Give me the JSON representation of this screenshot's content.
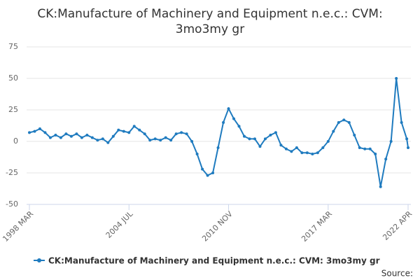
{
  "chart_data": {
    "type": "line",
    "title": "CK:Manufacture of Machinery and Equipment n.e.c.: CVM: 3mo3my gr",
    "source": "Source:",
    "x": [
      "1998 MAR",
      "1998 JUL",
      "1998 NOV",
      "1999 MAR",
      "1999 JUL",
      "1999 NOV",
      "2000 MAR",
      "2000 JUL",
      "2000 NOV",
      "2001 MAR",
      "2001 JUL",
      "2001 NOV",
      "2002 MAR",
      "2002 JUL",
      "2002 NOV",
      "2003 MAR",
      "2003 JUL",
      "2003 NOV",
      "2004 MAR",
      "2004 JUL",
      "2004 NOV",
      "2005 MAR",
      "2005 JUL",
      "2005 NOV",
      "2006 MAR",
      "2006 JUL",
      "2006 NOV",
      "2007 MAR",
      "2007 JUL",
      "2007 NOV",
      "2008 MAR",
      "2008 JUL",
      "2008 NOV",
      "2009 MAR",
      "2009 JUL",
      "2009 NOV",
      "2010 MAR",
      "2010 JUL",
      "2010 NOV",
      "2011 MAR",
      "2011 JUL",
      "2011 NOV",
      "2012 MAR",
      "2012 JUL",
      "2012 NOV",
      "2013 MAR",
      "2013 JUL",
      "2013 NOV",
      "2014 MAR",
      "2014 JUL",
      "2014 NOV",
      "2015 MAR",
      "2015 JUL",
      "2015 NOV",
      "2016 MAR",
      "2016 JUL",
      "2016 NOV",
      "2017 MAR",
      "2017 JUL",
      "2017 NOV",
      "2018 MAR",
      "2018 JUL",
      "2018 NOV",
      "2019 MAR",
      "2019 JUL",
      "2019 NOV",
      "2020 MAR",
      "2020 JUL",
      "2020 NOV",
      "2021 MAR",
      "2021 JUL",
      "2021 NOV",
      "2022 MAR",
      "2022 APR"
    ],
    "series": [
      {
        "name": "CK:Manufacture of Machinery and Equipment n.e.c.: CVM: 3mo3my gr",
        "color": "#1f7bbf",
        "values": [
          7,
          8,
          10,
          7,
          3,
          5,
          3,
          6,
          4,
          6,
          3,
          5,
          3,
          1,
          2,
          -1,
          4,
          9,
          8,
          7,
          12,
          9,
          6,
          1,
          2,
          1,
          3,
          1,
          6,
          7,
          6,
          0,
          -10,
          -22,
          -27,
          -25,
          -5,
          15,
          26,
          18,
          12,
          4,
          2,
          2,
          -4,
          2,
          5,
          7,
          -3,
          -6,
          -8,
          -5,
          -9,
          -9,
          -10,
          -9,
          -5,
          0,
          8,
          15,
          17,
          15,
          5,
          -5,
          -6,
          -6,
          -10,
          -36,
          -14,
          0,
          50,
          15,
          2,
          -5
        ]
      }
    ],
    "xticks": [
      "1998 MAR",
      "2004 JUL",
      "2010 NOV",
      "2017 MAR",
      "2022 APR"
    ],
    "ylim": [
      -50,
      75
    ],
    "yticks": [
      -50,
      -25,
      0,
      25,
      50,
      75
    ],
    "grid": true
  }
}
